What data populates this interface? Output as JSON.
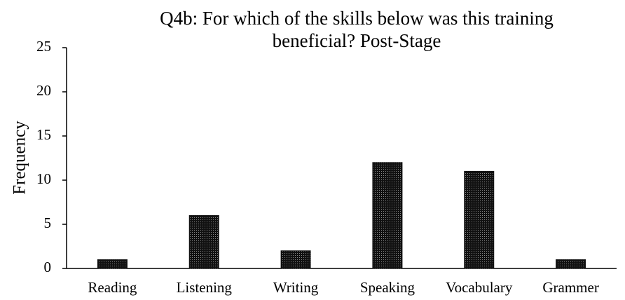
{
  "chart_data": {
    "type": "bar",
    "title": "Q4b: For which of the skills below was this training beneficial? Post-Stage",
    "ylabel": "Frequency",
    "categories": [
      "Reading",
      "Listening",
      "Writing",
      "Speaking",
      "Vocabulary",
      "Grammer"
    ],
    "values": [
      1,
      6,
      2,
      12,
      11,
      1
    ],
    "color": "#111111",
    "ylim": [
      0,
      25
    ],
    "yticks": [
      0,
      5,
      10,
      15,
      20,
      25
    ],
    "grid": false
  }
}
